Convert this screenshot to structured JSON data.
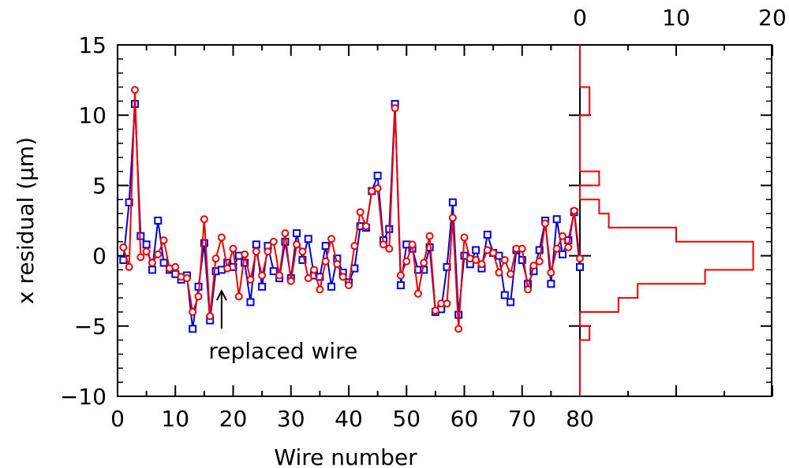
{
  "chart_data": {
    "type": "line",
    "xlabel": "Wire number",
    "ylabel": "x residual (μm)",
    "xlim": [
      0,
      80
    ],
    "ylim": [
      -10,
      15
    ],
    "x_ticks": [
      "0",
      "10",
      "20",
      "30",
      "40",
      "50",
      "60",
      "70",
      "80"
    ],
    "y_ticks": [
      "−10",
      "−5",
      "0",
      "5",
      "10",
      "15"
    ],
    "series": [
      {
        "marker": "square",
        "color": "#0000dd",
        "x": [
          1,
          2,
          3,
          4,
          5,
          6,
          7,
          8,
          9,
          10,
          11,
          12,
          13,
          14,
          15,
          16,
          17,
          18,
          19,
          20,
          21,
          22,
          23,
          24,
          25,
          26,
          27,
          28,
          29,
          30,
          31,
          32,
          33,
          34,
          35,
          36,
          37,
          38,
          39,
          40,
          41,
          42,
          43,
          44,
          45,
          46,
          47,
          48,
          49,
          50,
          51,
          52,
          53,
          54,
          55,
          56,
          57,
          58,
          59,
          60,
          61,
          62,
          63,
          64,
          65,
          66,
          67,
          68,
          69,
          70,
          71,
          72,
          73,
          74,
          75,
          76,
          77,
          78,
          79,
          80
        ],
        "y": [
          -0.3,
          3.8,
          10.8,
          1.4,
          0.8,
          -1.0,
          2.5,
          -0.5,
          -1.0,
          -1.3,
          -1.7,
          -1.4,
          -5.2,
          -2.2,
          0.9,
          -4.6,
          -1.1,
          -1.0,
          -0.5,
          -0.8,
          0.0,
          -0.5,
          -3.3,
          0.8,
          -2.2,
          0.7,
          -1.1,
          -1.6,
          1.0,
          -1.6,
          1.6,
          -0.3,
          1.2,
          -1.4,
          -1.5,
          0.7,
          -2.2,
          -0.2,
          -1.2,
          -1.9,
          -0.9,
          2.1,
          2.0,
          4.6,
          5.7,
          1.1,
          1.9,
          10.8,
          -2.1,
          0.8,
          0.5,
          -1.0,
          -1.0,
          0.6,
          -4.0,
          -3.8,
          -0.8,
          3.8,
          -4.2,
          0.0,
          -0.6,
          0.4,
          -0.9,
          1.5,
          0.2,
          0.0,
          -2.8,
          -3.3,
          0.4,
          -0.3,
          -2.0,
          -1.1,
          0.4,
          2.5,
          -2.0,
          2.6,
          0.1,
          1.1,
          3.1,
          -0.8
        ]
      },
      {
        "marker": "circle",
        "color": "#ee0000",
        "x": [
          1,
          2,
          3,
          4,
          5,
          6,
          7,
          8,
          9,
          10,
          11,
          12,
          13,
          14,
          15,
          16,
          17,
          18,
          19,
          20,
          21,
          22,
          23,
          24,
          25,
          26,
          27,
          28,
          29,
          30,
          31,
          32,
          33,
          34,
          35,
          36,
          37,
          38,
          39,
          40,
          41,
          42,
          43,
          44,
          45,
          46,
          47,
          48,
          49,
          50,
          51,
          52,
          53,
          54,
          55,
          56,
          57,
          58,
          59,
          60,
          61,
          62,
          63,
          64,
          65,
          66,
          67,
          68,
          69,
          70,
          71,
          72,
          73,
          74,
          75,
          76,
          77,
          78,
          79,
          80
        ],
        "y": [
          0.6,
          -0.8,
          11.8,
          -0.1,
          0.3,
          -0.5,
          0.1,
          1.1,
          -0.9,
          -0.8,
          -1.5,
          -1.6,
          -4.0,
          -2.9,
          2.6,
          -4.3,
          -0.2,
          1.3,
          -0.9,
          0.5,
          -2.9,
          0.1,
          -1.7,
          0.3,
          -1.4,
          0.3,
          1.0,
          -1.4,
          1.6,
          -1.8,
          0.8,
          0.3,
          -1.6,
          -1.0,
          -2.4,
          -0.4,
          1.2,
          -0.6,
          -1.5,
          -2.1,
          0.7,
          3.1,
          2.1,
          4.6,
          4.8,
          0.8,
          0.5,
          10.5,
          -1.4,
          -0.4,
          0.8,
          -2.7,
          -0.5,
          1.4,
          -3.9,
          -3.4,
          -3.4,
          2.7,
          -5.2,
          1.3,
          -0.2,
          -0.3,
          -0.6,
          0.4,
          0.2,
          -1.2,
          -0.3,
          -1.3,
          0.5,
          0.5,
          -2.4,
          -0.7,
          -0.4,
          2.3,
          -1.2,
          0.5,
          1.4,
          0.6,
          3.2,
          -0.2
        ]
      }
    ],
    "histogram": {
      "type": "step-histogram",
      "orientation": "horizontal",
      "color": "#ee0000",
      "x_ticks": [
        "0",
        "10",
        "20"
      ],
      "xlim": [
        0,
        20
      ],
      "bin_edges": [
        -10,
        -9,
        -8,
        -7,
        -6,
        -5,
        -4,
        -3,
        -2,
        -1,
        0,
        1,
        2,
        3,
        4,
        5,
        6,
        7,
        8,
        9,
        10,
        11,
        12,
        13,
        14,
        15
      ],
      "counts": [
        0,
        0,
        0,
        0,
        1,
        0,
        4,
        6,
        13,
        18,
        18,
        10,
        3,
        2,
        0,
        2,
        0,
        0,
        0,
        0,
        1,
        1,
        0,
        0,
        0
      ]
    },
    "annotation": {
      "text": "replaced wire",
      "x": 18,
      "y": -2.5
    }
  }
}
